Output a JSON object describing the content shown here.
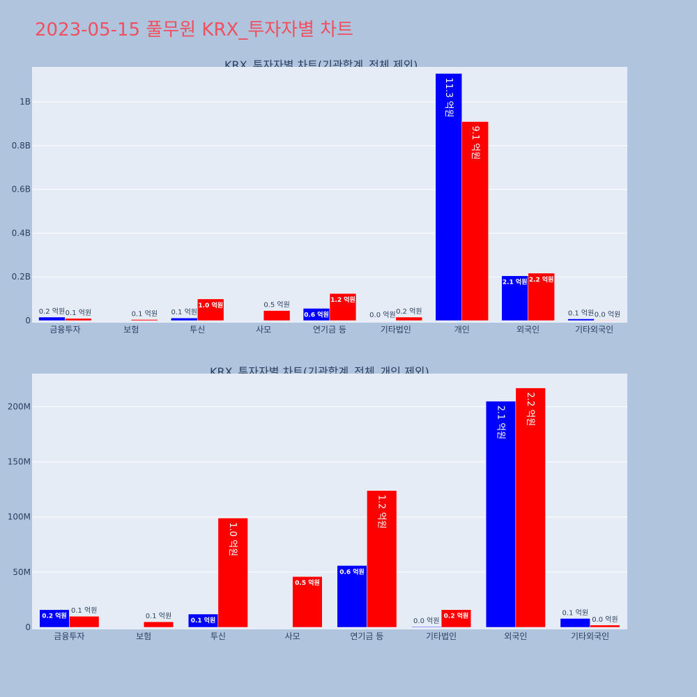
{
  "page": {
    "title": "2023-05-15 풀무원 KRX_투자자별 차트"
  },
  "colors": {
    "buy": "#0000ff",
    "sell": "#ff0000",
    "plot_bg": "#e5ecf6",
    "page_bg": "#b0c4de",
    "title": "#ef4f5f"
  },
  "chart_data": [
    {
      "type": "bar",
      "title": "KRX_투자자별 차트(기관합계_전체 제외)",
      "categories": [
        "금융투자",
        "보험",
        "투신",
        "사모",
        "연기금 등",
        "기타법인",
        "개인",
        "외국인",
        "기타외국인"
      ],
      "series": [
        {
          "color": "#0000ff",
          "values": [
            16000000,
            0,
            12000000,
            0,
            56000000,
            600000,
            1130000000,
            205000000,
            8000000
          ],
          "labels": [
            "0.2 억원",
            "",
            "0.1 억원",
            "",
            "0.6 억원",
            "0.0 억원",
            "11.3 억원",
            "2.1 억원",
            "0.1 억원"
          ]
        },
        {
          "color": "#ff0000",
          "values": [
            10000000,
            5000000,
            99000000,
            46000000,
            124000000,
            16000000,
            910000000,
            217000000,
            2000000
          ],
          "labels": [
            "0.1 억원",
            "0.1 억원",
            "1.0 억원",
            "0.5 억원",
            "1.2 억원",
            "0.2 억원",
            "9.1 억원",
            "2.2 억원",
            "0.0 억원"
          ]
        }
      ],
      "yticks": [
        0,
        200000000,
        400000000,
        600000000,
        800000000,
        1000000000
      ],
      "yticklabels": [
        "0",
        "0.2B",
        "0.4B",
        "0.6B",
        "0.8B",
        "1B"
      ],
      "ylim": [
        0,
        1160000000
      ],
      "grid": true
    },
    {
      "type": "bar",
      "title": "KRX_투자자별 차트(기관합계_전체_개인 제외)",
      "categories": [
        "금융투자",
        "보험",
        "투신",
        "사모",
        "연기금 등",
        "기타법인",
        "외국인",
        "기타외국인"
      ],
      "series": [
        {
          "color": "#0000ff",
          "values": [
            16000000,
            0,
            12000000,
            0,
            56000000,
            600000,
            205000000,
            8000000
          ],
          "labels": [
            "0.2 억원",
            "",
            "0.1 억원",
            "",
            "0.6 억원",
            "0.0 억원",
            "2.1 억원",
            "0.1 억원"
          ]
        },
        {
          "color": "#ff0000",
          "values": [
            10000000,
            5000000,
            99000000,
            46000000,
            124000000,
            16000000,
            217000000,
            2000000
          ],
          "labels": [
            "0.1 억원",
            "0.1 억원",
            "1.0 억원",
            "0.5 억원",
            "1.2 억원",
            "0.2 억원",
            "2.2 억원",
            "0.0 억원"
          ]
        }
      ],
      "yticks": [
        0,
        50000000,
        100000000,
        150000000,
        200000000
      ],
      "yticklabels": [
        "0",
        "50M",
        "100M",
        "150M",
        "200M"
      ],
      "ylim": [
        0,
        230000000
      ],
      "grid": true
    }
  ]
}
